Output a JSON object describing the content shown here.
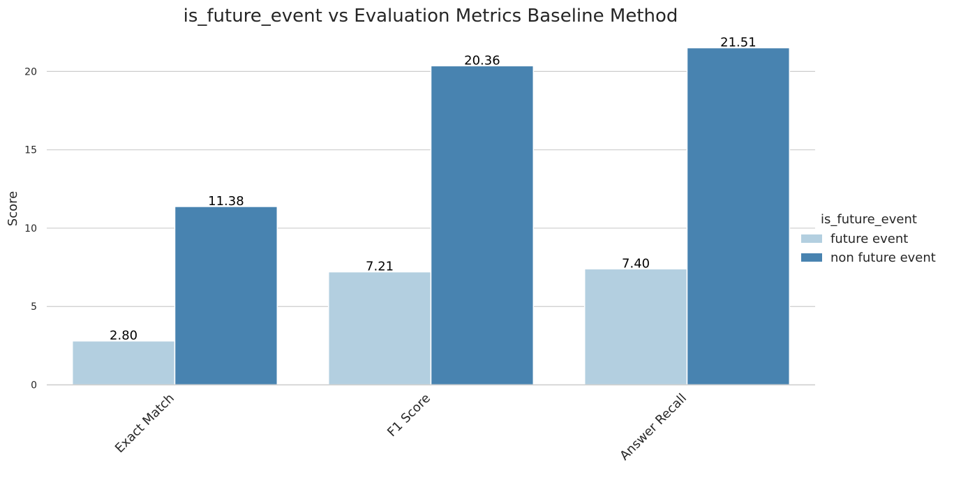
{
  "chart_data": {
    "type": "bar",
    "title": "is_future_event vs Evaluation Metrics Baseline Method",
    "xlabel": "",
    "ylabel": "Score",
    "categories": [
      "Exact Match",
      "F1 Score",
      "Answer Recall"
    ],
    "series": [
      {
        "name": "future event",
        "values": [
          2.8,
          7.21,
          7.4
        ],
        "labels": [
          "2.80",
          "7.21",
          "7.40"
        ],
        "color": "#b3cfe0"
      },
      {
        "name": "non future event",
        "values": [
          11.38,
          20.36,
          21.51
        ],
        "labels": [
          "11.38",
          "20.36",
          "21.51"
        ],
        "color": "#4883b0"
      }
    ],
    "yticks": [
      "0",
      "5",
      "10",
      "15",
      "20"
    ],
    "ylim": [
      0,
      22.6
    ],
    "grid": true,
    "legend": {
      "title": "is_future_event",
      "placement": "right"
    }
  }
}
